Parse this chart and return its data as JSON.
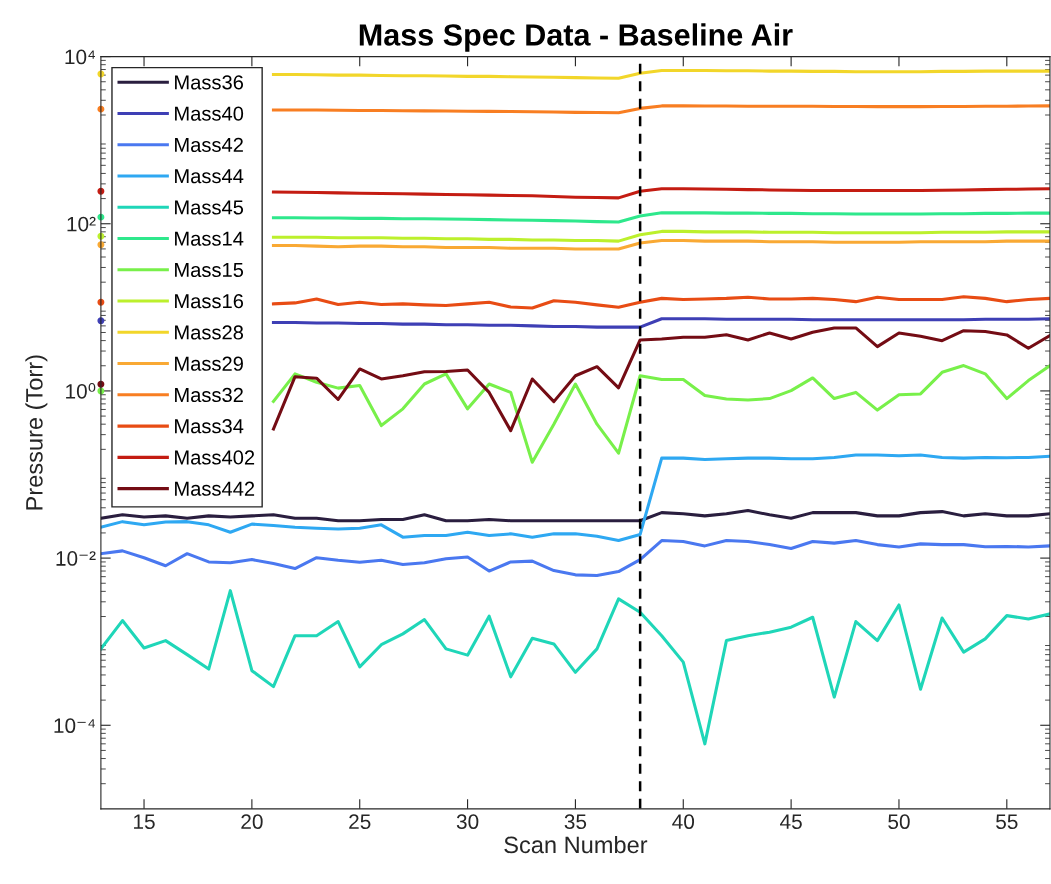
{
  "chart_data": {
    "type": "line",
    "title": "Mass Spec Data - Baseline Air",
    "xlabel": "Scan Number",
    "ylabel": "Pressure (Torr)",
    "x": [
      13,
      14,
      15,
      16,
      17,
      18,
      19,
      20,
      21,
      22,
      23,
      24,
      25,
      26,
      27,
      28,
      29,
      30,
      31,
      32,
      33,
      34,
      35,
      36,
      37,
      38,
      39,
      40,
      41,
      42,
      43,
      44,
      45,
      46,
      47,
      48,
      49,
      50,
      51,
      52,
      53,
      54,
      55,
      56,
      57
    ],
    "xlim": [
      13,
      57
    ],
    "xticks": [
      15,
      20,
      25,
      30,
      35,
      40,
      45,
      50,
      55
    ],
    "ylim": [
      1e-05,
      10000
    ],
    "yticks": [
      {
        "value": 0.0001,
        "label": "10⁻⁴"
      },
      {
        "value": 0.01,
        "label": "10⁻²"
      },
      {
        "value": 1,
        "label": "10⁰"
      },
      {
        "value": 100,
        "label": "10²"
      },
      {
        "value": 10000,
        "label": "10⁴"
      }
    ],
    "log": "y",
    "grid": false,
    "legend": "top left",
    "marker": "none",
    "line_style": "solid",
    "ref_lines": [
      {
        "axis": "x",
        "value": 38,
        "color": "#000000",
        "line_style": "dashed"
      }
    ],
    "series": [
      {
        "name": "Mass36",
        "color": "#2a1e3f",
        "values": [
          0.03,
          0.033,
          0.031,
          0.032,
          0.03,
          0.032,
          0.031,
          0.032,
          0.033,
          0.03,
          0.03,
          0.028,
          0.028,
          0.029,
          0.029,
          0.033,
          0.028,
          0.028,
          0.029,
          0.028,
          0.028,
          0.028,
          0.028,
          0.028,
          0.028,
          0.028,
          0.035,
          0.034,
          0.032,
          0.034,
          0.037,
          0.033,
          0.03,
          0.035,
          0.035,
          0.035,
          0.032,
          0.032,
          0.035,
          0.036,
          0.032,
          0.034,
          0.032,
          0.032,
          0.034
        ]
      },
      {
        "name": "Mass40",
        "color": "#3e3fb5",
        "values": [
          6.9,
          null,
          null,
          null,
          null,
          null,
          null,
          null,
          6.6,
          6.6,
          6.5,
          6.5,
          6.4,
          6.4,
          6.3,
          6.3,
          6.2,
          6.2,
          6.1,
          6.1,
          6.0,
          5.9,
          5.9,
          5.8,
          5.8,
          5.8,
          7.3,
          7.3,
          7.3,
          7.2,
          7.2,
          7.2,
          7.2,
          7.1,
          7.1,
          7.1,
          7.1,
          7.1,
          7.1,
          7.1,
          7.1,
          7.2,
          7.2,
          7.2,
          7.3
        ]
      },
      {
        "name": "Mass42",
        "color": "#4a78f0",
        "values": [
          0.0113,
          0.0122,
          0.0101,
          0.0081,
          0.0113,
          0.009,
          0.0088,
          0.0096,
          0.0086,
          0.0075,
          0.0101,
          0.0094,
          0.0089,
          0.0094,
          0.0084,
          0.0088,
          0.0098,
          0.0103,
          0.007,
          0.009,
          0.0092,
          0.0071,
          0.0063,
          0.0062,
          0.0069,
          0.0096,
          0.0162,
          0.0158,
          0.014,
          0.0162,
          0.0158,
          0.0145,
          0.013,
          0.0158,
          0.0151,
          0.0162,
          0.0145,
          0.0136,
          0.0148,
          0.0145,
          0.0145,
          0.0137,
          0.0138,
          0.0136,
          0.014
        ]
      },
      {
        "name": "Mass44",
        "color": "#2ea8f2",
        "values": [
          0.0234,
          0.0273,
          0.025,
          0.027,
          0.0273,
          0.025,
          0.0204,
          0.0255,
          0.0245,
          0.0234,
          0.0228,
          0.0223,
          0.0228,
          0.025,
          0.0178,
          0.0186,
          0.0186,
          0.0204,
          0.0186,
          0.0195,
          0.0178,
          0.0195,
          0.0195,
          0.0183,
          0.0162,
          0.0192,
          0.157,
          0.157,
          0.151,
          0.154,
          0.157,
          0.157,
          0.154,
          0.154,
          0.16,
          0.171,
          0.171,
          0.168,
          0.171,
          0.16,
          0.157,
          0.16,
          0.159,
          0.16,
          0.165
        ]
      },
      {
        "name": "Mass45",
        "color": "#1fd6b8",
        "values": [
          0.00082,
          0.00179,
          0.00084,
          0.00103,
          0.0007,
          0.00047,
          0.00408,
          0.00045,
          0.00029,
          0.00118,
          0.00118,
          0.00174,
          0.0005,
          0.00092,
          0.00124,
          0.00184,
          0.00082,
          0.00069,
          0.00202,
          0.00038,
          0.0011,
          0.00094,
          0.00043,
          0.00082,
          0.00325,
          0.00225,
          0.00118,
          0.00057,
          6e-05,
          0.00103,
          0.00118,
          0.0013,
          0.00149,
          0.00196,
          0.000217,
          0.00174,
          0.00103,
          0.00275,
          0.00027,
          0.00192,
          0.00075,
          0.00108,
          0.00205,
          0.00187,
          0.00215
        ]
      },
      {
        "name": "Mass14",
        "color": "#2ee88c",
        "values": [
          120,
          null,
          null,
          null,
          null,
          null,
          null,
          null,
          118,
          118,
          117,
          117,
          116,
          116,
          115,
          115,
          114,
          113,
          112,
          111,
          110,
          109,
          108,
          106,
          105,
          124,
          135,
          135,
          135,
          134,
          134,
          133,
          133,
          132,
          132,
          131,
          131,
          131,
          131,
          132,
          132,
          133,
          133,
          134,
          134
        ]
      },
      {
        "name": "Mass15",
        "color": "#78f04a",
        "values": [
          1.0,
          null,
          null,
          null,
          null,
          null,
          null,
          null,
          0.75,
          1.6,
          1.27,
          1.08,
          1.16,
          0.385,
          0.61,
          1.21,
          1.6,
          0.61,
          1.21,
          0.96,
          0.14,
          0.4,
          1.21,
          0.4,
          0.18,
          1.52,
          1.37,
          1.37,
          0.88,
          0.8,
          0.78,
          0.81,
          1.01,
          1.43,
          0.81,
          0.96,
          0.59,
          0.9,
          0.92,
          1.67,
          2.01,
          1.6,
          0.81,
          1.33,
          2.01
        ]
      },
      {
        "name": "Mass16",
        "color": "#bcf02c",
        "values": [
          71,
          null,
          null,
          null,
          null,
          null,
          null,
          null,
          69,
          69,
          69,
          68,
          68,
          68,
          67,
          67,
          66,
          66,
          65,
          65,
          64,
          64,
          63,
          63,
          62,
          74,
          81,
          81,
          80,
          80,
          80,
          79,
          79,
          79,
          78,
          78,
          78,
          78,
          78,
          79,
          79,
          79,
          80,
          80,
          80
        ]
      },
      {
        "name": "Mass28",
        "color": "#f2d62a",
        "values": [
          6200,
          null,
          null,
          null,
          null,
          null,
          null,
          null,
          6100,
          6100,
          6050,
          6000,
          6000,
          5950,
          5900,
          5900,
          5850,
          5800,
          5800,
          5750,
          5700,
          5650,
          5600,
          5550,
          5500,
          6300,
          6800,
          6800,
          6800,
          6750,
          6750,
          6700,
          6700,
          6650,
          6650,
          6600,
          6600,
          6600,
          6600,
          6650,
          6650,
          6700,
          6700,
          6700,
          6700
        ]
      },
      {
        "name": "Mass29",
        "color": "#f9a934",
        "values": [
          56,
          null,
          null,
          null,
          null,
          null,
          null,
          null,
          55,
          55,
          54,
          53,
          54,
          54,
          53,
          53,
          52,
          52,
          52,
          51,
          51,
          51,
          50,
          50,
          50,
          59,
          63,
          63,
          62,
          62,
          62,
          61,
          61,
          61,
          60,
          60,
          60,
          60,
          61,
          61,
          61,
          61,
          62,
          62,
          62
        ]
      },
      {
        "name": "Mass32",
        "color": "#f87e22",
        "values": [
          2350,
          null,
          null,
          null,
          null,
          null,
          null,
          null,
          2300,
          2300,
          2290,
          2280,
          2270,
          2260,
          2250,
          2240,
          2230,
          2220,
          2210,
          2200,
          2190,
          2170,
          2150,
          2140,
          2130,
          2400,
          2570,
          2570,
          2560,
          2560,
          2550,
          2550,
          2540,
          2540,
          2530,
          2530,
          2520,
          2520,
          2520,
          2530,
          2530,
          2540,
          2550,
          2560,
          2570
        ]
      },
      {
        "name": "Mass34",
        "color": "#e84c14",
        "values": [
          11.5,
          null,
          null,
          null,
          null,
          null,
          null,
          null,
          11.0,
          11.3,
          12.6,
          10.8,
          11.5,
          10.8,
          11.0,
          10.7,
          10.5,
          11.0,
          11.5,
          10.1,
          9.8,
          12.0,
          11.5,
          10.7,
          10.0,
          11.5,
          12.8,
          12.4,
          12.6,
          12.8,
          13.2,
          12.6,
          12.6,
          12.8,
          12.4,
          11.7,
          13.2,
          12.4,
          12.4,
          12.4,
          13.4,
          12.8,
          11.7,
          12.4,
          12.8
        ]
      },
      {
        "name": "Mass402",
        "color": "#c41c12",
        "values": [
          245,
          null,
          null,
          null,
          null,
          null,
          null,
          null,
          240,
          238,
          236,
          234,
          232,
          230,
          228,
          226,
          224,
          222,
          220,
          218,
          216,
          212,
          208,
          206,
          204,
          245,
          262,
          262,
          260,
          258,
          256,
          254,
          252,
          250,
          250,
          250,
          250,
          250,
          250,
          252,
          254,
          256,
          258,
          260,
          262
        ]
      },
      {
        "name": "Mass442",
        "color": "#740c14",
        "values": [
          1.2,
          null,
          null,
          null,
          null,
          null,
          null,
          null,
          0.35,
          1.48,
          1.42,
          0.79,
          1.83,
          1.39,
          1.52,
          1.7,
          1.71,
          1.78,
          0.96,
          0.335,
          1.39,
          0.745,
          1.52,
          1.95,
          1.09,
          4.07,
          4.19,
          4.39,
          4.39,
          4.71,
          4.07,
          4.94,
          4.19,
          5.03,
          5.67,
          5.67,
          3.39,
          4.94,
          4.51,
          3.99,
          5.26,
          5.13,
          4.68,
          3.24,
          4.59
        ]
      }
    ]
  }
}
